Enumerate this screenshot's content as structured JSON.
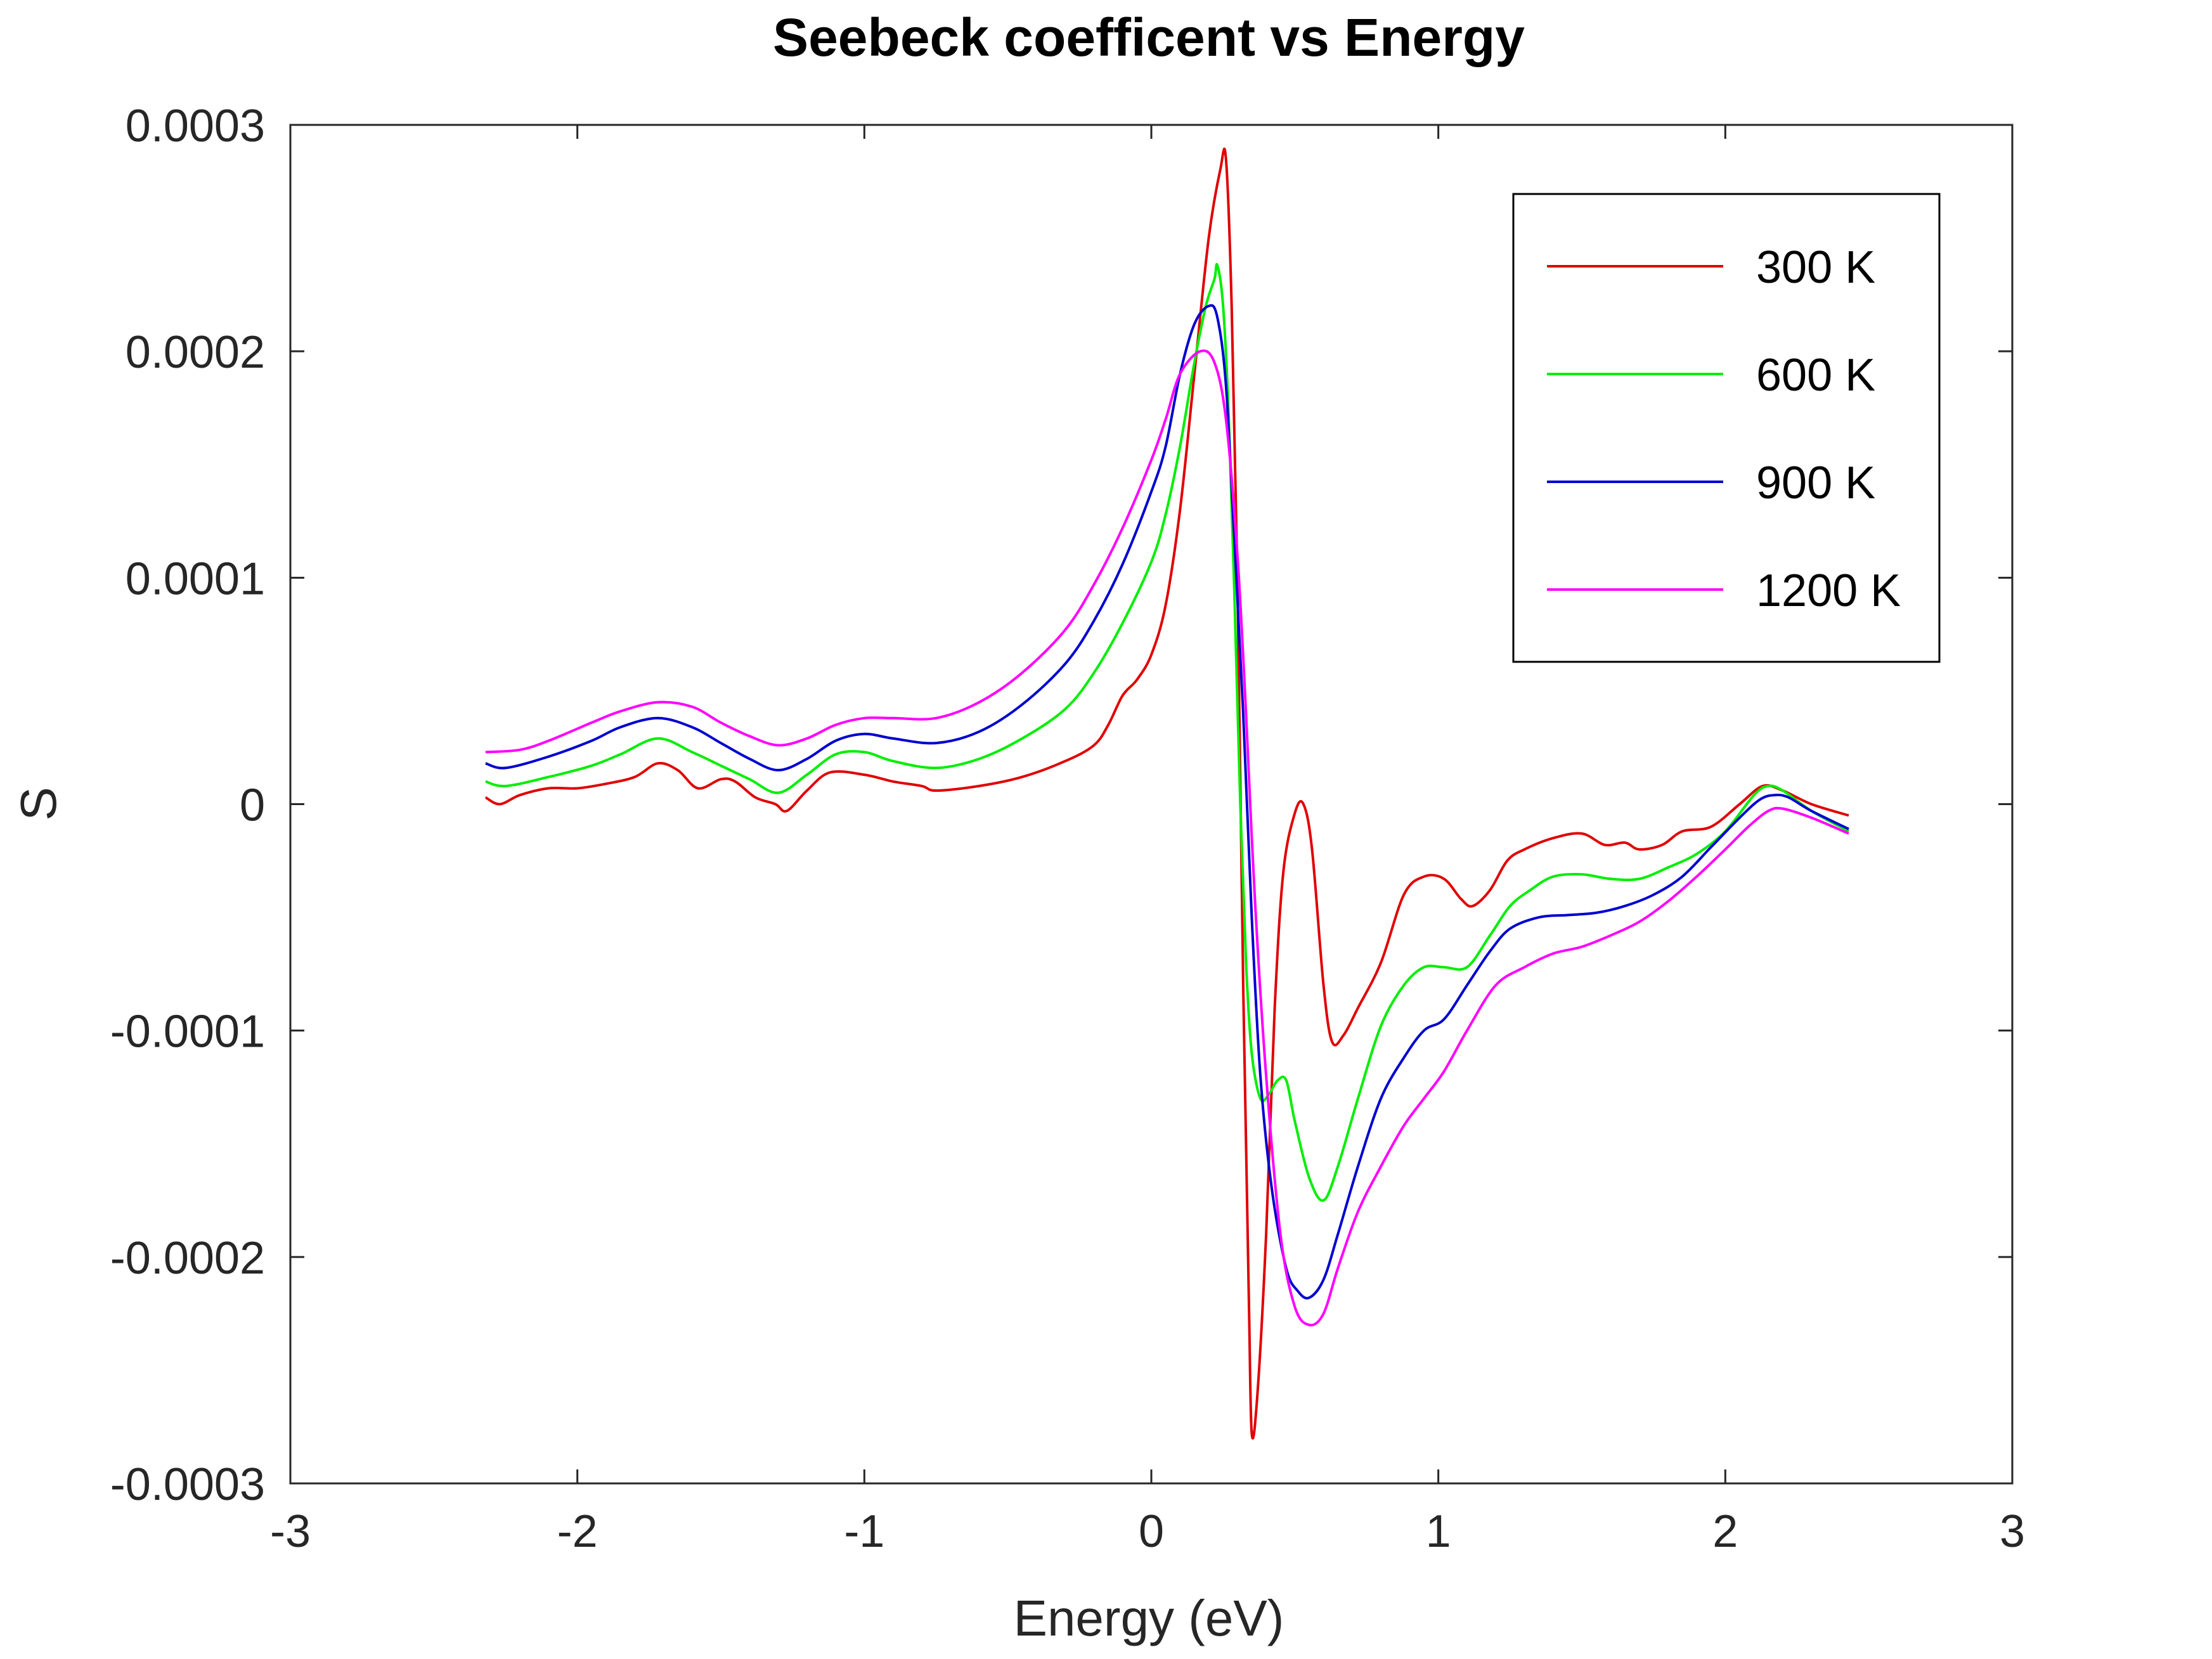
{
  "chart_data": {
    "type": "line",
    "title": "Seebeck coefficent vs Energy",
    "xlabel": "Energy (eV)",
    "ylabel": "S",
    "xlim": [
      -3,
      3
    ],
    "ylim": [
      -0.0003,
      0.0003
    ],
    "xticks": [
      -3,
      -2,
      -1,
      0,
      1,
      2,
      3
    ],
    "xtick_labels": [
      "-3",
      "-2",
      "-1",
      "0",
      "1",
      "2",
      "3"
    ],
    "yticks": [
      -0.0003,
      -0.0002,
      -0.0001,
      0,
      0.0001,
      0.0002,
      0.0003
    ],
    "ytick_labels": [
      "-0.0003",
      "-0.0002",
      "-0.0001",
      "0",
      "0.0001",
      "0.0002",
      "0.0003"
    ],
    "grid": false,
    "legend_position": "top-right",
    "series": [
      {
        "name": "300 K",
        "color": "#e00000",
        "points": [
          [
            -2.32,
            3e-06
          ],
          [
            -2.27,
            0.0
          ],
          [
            -2.2,
            4e-06
          ],
          [
            -2.1,
            7e-06
          ],
          [
            -2.0,
            7e-06
          ],
          [
            -1.9,
            9e-06
          ],
          [
            -1.8,
            1.2e-05
          ],
          [
            -1.72,
            1.8e-05
          ],
          [
            -1.65,
            1.5e-05
          ],
          [
            -1.58,
            7e-06
          ],
          [
            -1.5,
            1.1e-05
          ],
          [
            -1.45,
            1e-05
          ],
          [
            -1.38,
            3e-06
          ],
          [
            -1.31,
            0.0
          ],
          [
            -1.27,
            -3e-06
          ],
          [
            -1.2,
            6e-06
          ],
          [
            -1.12,
            1.4e-05
          ],
          [
            -1.0,
            1.3e-05
          ],
          [
            -0.9,
            1e-05
          ],
          [
            -0.8,
            8e-06
          ],
          [
            -0.75,
            6e-06
          ],
          [
            -0.6,
            8e-06
          ],
          [
            -0.45,
            1.2e-05
          ],
          [
            -0.3,
            1.9e-05
          ],
          [
            -0.2,
            2.6e-05
          ],
          [
            -0.15,
            3.5e-05
          ],
          [
            -0.1,
            4.8e-05
          ],
          [
            -0.05,
            5.5e-05
          ],
          [
            0.0,
            6.6e-05
          ],
          [
            0.05,
            8.8e-05
          ],
          [
            0.1,
            0.00013
          ],
          [
            0.15,
            0.00019
          ],
          [
            0.2,
            0.00025
          ],
          [
            0.24,
            0.00028
          ],
          [
            0.26,
            0.000285
          ],
          [
            0.28,
            0.00022
          ],
          [
            0.3,
            0.0001
          ],
          [
            0.32,
            -8e-05
          ],
          [
            0.34,
            -0.00022
          ],
          [
            0.35,
            -0.000278
          ],
          [
            0.37,
            -0.00026
          ],
          [
            0.4,
            -0.00019
          ],
          [
            0.43,
            -9e-05
          ],
          [
            0.46,
            -3e-05
          ],
          [
            0.5,
            -4e-06
          ],
          [
            0.53,
            0.0
          ],
          [
            0.56,
            -2e-05
          ],
          [
            0.6,
            -8e-05
          ],
          [
            0.63,
            -0.000105
          ],
          [
            0.67,
            -0.000102
          ],
          [
            0.72,
            -9e-05
          ],
          [
            0.8,
            -7e-05
          ],
          [
            0.88,
            -4e-05
          ],
          [
            0.95,
            -3.2e-05
          ],
          [
            1.02,
            -3.3e-05
          ],
          [
            1.08,
            -4.2e-05
          ],
          [
            1.12,
            -4.5e-05
          ],
          [
            1.18,
            -3.8e-05
          ],
          [
            1.24,
            -2.5e-05
          ],
          [
            1.3,
            -2e-05
          ],
          [
            1.4,
            -1.5e-05
          ],
          [
            1.5,
            -1.3e-05
          ],
          [
            1.58,
            -1.8e-05
          ],
          [
            1.65,
            -1.7e-05
          ],
          [
            1.7,
            -2e-05
          ],
          [
            1.78,
            -1.8e-05
          ],
          [
            1.85,
            -1.2e-05
          ],
          [
            1.95,
            -1e-05
          ],
          [
            2.05,
            0.0
          ],
          [
            2.13,
            8e-06
          ],
          [
            2.2,
            6e-06
          ],
          [
            2.3,
            0.0
          ],
          [
            2.43,
            -5e-06
          ]
        ]
      },
      {
        "name": "600 K",
        "color": "#00ee00",
        "points": [
          [
            -2.32,
            1e-05
          ],
          [
            -2.25,
            8e-06
          ],
          [
            -2.1,
            1.2e-05
          ],
          [
            -1.95,
            1.7e-05
          ],
          [
            -1.85,
            2.2e-05
          ],
          [
            -1.72,
            2.9e-05
          ],
          [
            -1.6,
            2.3e-05
          ],
          [
            -1.5,
            1.7e-05
          ],
          [
            -1.4,
            1.1e-05
          ],
          [
            -1.3,
            5e-06
          ],
          [
            -1.2,
            1.3e-05
          ],
          [
            -1.1,
            2.2e-05
          ],
          [
            -1.0,
            2.3e-05
          ],
          [
            -0.9,
            1.9e-05
          ],
          [
            -0.75,
            1.6e-05
          ],
          [
            -0.6,
            2e-05
          ],
          [
            -0.45,
            2.9e-05
          ],
          [
            -0.3,
            4.2e-05
          ],
          [
            -0.2,
            5.8e-05
          ],
          [
            -0.1,
            8e-05
          ],
          [
            0.0,
            0.000107
          ],
          [
            0.05,
            0.000128
          ],
          [
            0.1,
            0.000158
          ],
          [
            0.15,
            0.000195
          ],
          [
            0.19,
            0.00022
          ],
          [
            0.22,
            0.000232
          ],
          [
            0.23,
            0.000238
          ],
          [
            0.25,
            0.00022
          ],
          [
            0.27,
            0.00017
          ],
          [
            0.29,
            9e-05
          ],
          [
            0.31,
            0.0
          ],
          [
            0.33,
            -7e-05
          ],
          [
            0.35,
            -0.00011
          ],
          [
            0.38,
            -0.00013
          ],
          [
            0.41,
            -0.000128
          ],
          [
            0.44,
            -0.000122
          ],
          [
            0.47,
            -0.000122
          ],
          [
            0.5,
            -0.00014
          ],
          [
            0.55,
            -0.000165
          ],
          [
            0.6,
            -0.000175
          ],
          [
            0.65,
            -0.00016
          ],
          [
            0.72,
            -0.00013
          ],
          [
            0.8,
            -9.8e-05
          ],
          [
            0.88,
            -8e-05
          ],
          [
            0.95,
            -7.2e-05
          ],
          [
            1.02,
            -7.2e-05
          ],
          [
            1.1,
            -7.2e-05
          ],
          [
            1.18,
            -5.8e-05
          ],
          [
            1.25,
            -4.5e-05
          ],
          [
            1.32,
            -3.8e-05
          ],
          [
            1.4,
            -3.2e-05
          ],
          [
            1.5,
            -3.1e-05
          ],
          [
            1.6,
            -3.3e-05
          ],
          [
            1.7,
            -3.3e-05
          ],
          [
            1.8,
            -2.8e-05
          ],
          [
            1.9,
            -2.2e-05
          ],
          [
            2.0,
            -1.2e-05
          ],
          [
            2.1,
            4e-06
          ],
          [
            2.15,
            8e-06
          ],
          [
            2.2,
            6e-06
          ],
          [
            2.3,
            -3e-06
          ],
          [
            2.43,
            -1.2e-05
          ]
        ]
      },
      {
        "name": "900 K",
        "color": "#0000d0",
        "points": [
          [
            -2.32,
            1.8e-05
          ],
          [
            -2.25,
            1.6e-05
          ],
          [
            -2.1,
            2.1e-05
          ],
          [
            -1.95,
            2.8e-05
          ],
          [
            -1.85,
            3.4e-05
          ],
          [
            -1.72,
            3.8e-05
          ],
          [
            -1.6,
            3.4e-05
          ],
          [
            -1.5,
            2.7e-05
          ],
          [
            -1.4,
            2e-05
          ],
          [
            -1.3,
            1.5e-05
          ],
          [
            -1.2,
            2e-05
          ],
          [
            -1.1,
            2.8e-05
          ],
          [
            -1.0,
            3.1e-05
          ],
          [
            -0.9,
            2.9e-05
          ],
          [
            -0.75,
            2.7e-05
          ],
          [
            -0.6,
            3.2e-05
          ],
          [
            -0.45,
            4.4e-05
          ],
          [
            -0.3,
            6.2e-05
          ],
          [
            -0.2,
            8.1e-05
          ],
          [
            -0.1,
            0.000106
          ],
          [
            0.0,
            0.000138
          ],
          [
            0.05,
            0.000158
          ],
          [
            0.1,
            0.00019
          ],
          [
            0.15,
            0.000212
          ],
          [
            0.2,
            0.00022
          ],
          [
            0.23,
            0.000215
          ],
          [
            0.26,
            0.000185
          ],
          [
            0.29,
            0.000115
          ],
          [
            0.32,
            4e-05
          ],
          [
            0.35,
            -5e-05
          ],
          [
            0.38,
            -0.00012
          ],
          [
            0.42,
            -0.00017
          ],
          [
            0.47,
            -0.000205
          ],
          [
            0.51,
            -0.000215
          ],
          [
            0.55,
            -0.000218
          ],
          [
            0.6,
            -0.00021
          ],
          [
            0.65,
            -0.00019
          ],
          [
            0.72,
            -0.00016
          ],
          [
            0.8,
            -0.00013
          ],
          [
            0.88,
            -0.000112
          ],
          [
            0.95,
            -0.0001
          ],
          [
            1.02,
            -9.5e-05
          ],
          [
            1.1,
            -8e-05
          ],
          [
            1.18,
            -6.5e-05
          ],
          [
            1.25,
            -5.5e-05
          ],
          [
            1.35,
            -5e-05
          ],
          [
            1.45,
            -4.9e-05
          ],
          [
            1.55,
            -4.8e-05
          ],
          [
            1.65,
            -4.5e-05
          ],
          [
            1.75,
            -4e-05
          ],
          [
            1.85,
            -3.2e-05
          ],
          [
            1.95,
            -1.9e-05
          ],
          [
            2.05,
            -6e-06
          ],
          [
            2.12,
            2e-06
          ],
          [
            2.17,
            4e-06
          ],
          [
            2.22,
            3e-06
          ],
          [
            2.3,
            -3e-06
          ],
          [
            2.43,
            -1.1e-05
          ]
        ]
      },
      {
        "name": "1200 K",
        "color": "#ff00ff",
        "points": [
          [
            -2.32,
            2.3e-05
          ],
          [
            -2.2,
            2.4e-05
          ],
          [
            -2.1,
            2.8e-05
          ],
          [
            -1.95,
            3.6e-05
          ],
          [
            -1.85,
            4.1e-05
          ],
          [
            -1.72,
            4.5e-05
          ],
          [
            -1.6,
            4.3e-05
          ],
          [
            -1.5,
            3.6e-05
          ],
          [
            -1.4,
            3e-05
          ],
          [
            -1.3,
            2.6e-05
          ],
          [
            -1.2,
            2.9e-05
          ],
          [
            -1.1,
            3.5e-05
          ],
          [
            -1.0,
            3.8e-05
          ],
          [
            -0.9,
            3.8e-05
          ],
          [
            -0.75,
            3.8e-05
          ],
          [
            -0.6,
            4.5e-05
          ],
          [
            -0.45,
            5.8e-05
          ],
          [
            -0.3,
            7.7e-05
          ],
          [
            -0.2,
            9.7e-05
          ],
          [
            -0.1,
            0.000122
          ],
          [
            0.0,
            0.000152
          ],
          [
            0.05,
            0.00017
          ],
          [
            0.1,
            0.00019
          ],
          [
            0.17,
            0.0002
          ],
          [
            0.22,
            0.000195
          ],
          [
            0.26,
            0.00017
          ],
          [
            0.3,
            0.00011
          ],
          [
            0.33,
            4e-05
          ],
          [
            0.36,
            -4e-05
          ],
          [
            0.4,
            -0.00012
          ],
          [
            0.45,
            -0.00019
          ],
          [
            0.5,
            -0.000222
          ],
          [
            0.55,
            -0.00023
          ],
          [
            0.6,
            -0.000225
          ],
          [
            0.65,
            -0.000205
          ],
          [
            0.72,
            -0.00018
          ],
          [
            0.8,
            -0.00016
          ],
          [
            0.88,
            -0.000142
          ],
          [
            0.95,
            -0.00013
          ],
          [
            1.02,
            -0.000118
          ],
          [
            1.1,
            -0.0001
          ],
          [
            1.2,
            -8e-05
          ],
          [
            1.3,
            -7.2e-05
          ],
          [
            1.4,
            -6.6e-05
          ],
          [
            1.5,
            -6.3e-05
          ],
          [
            1.6,
            -5.8e-05
          ],
          [
            1.7,
            -5.2e-05
          ],
          [
            1.8,
            -4.3e-05
          ],
          [
            1.9,
            -3.2e-05
          ],
          [
            2.0,
            -2e-05
          ],
          [
            2.08,
            -1e-05
          ],
          [
            2.15,
            -3e-06
          ],
          [
            2.2,
            -2e-06
          ],
          [
            2.3,
            -6e-06
          ],
          [
            2.43,
            -1.3e-05
          ]
        ]
      }
    ]
  }
}
